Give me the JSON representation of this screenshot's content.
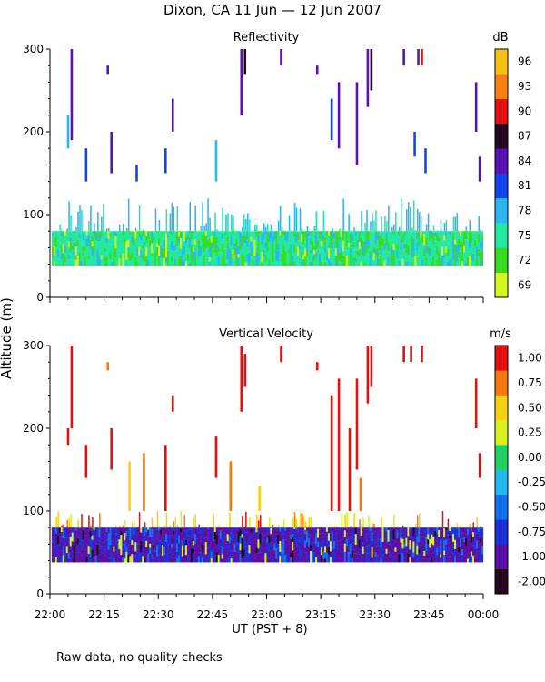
{
  "figure": {
    "title": "Dixon, CA 11 Jun — 12 Jun 2007",
    "shared_ylabel": "Altitude (m)",
    "xlabel": "UT  (PST + 8)",
    "footnote": "Raw data, no quality checks"
  },
  "chart_data": [
    {
      "type": "heatmap",
      "title": "Reflectivity",
      "xlabel": "UT  (PST + 8)",
      "ylabel": "Altitude (m)",
      "xlim": [
        0,
        120
      ],
      "x_unit": "minutes after 22:00 UT",
      "x_ticks": [
        0,
        15,
        30,
        45,
        60,
        75,
        90,
        105,
        120
      ],
      "x_tick_labels": [
        "22:00",
        "22:15",
        "22:30",
        "22:45",
        "23:00",
        "23:15",
        "23:30",
        "23:45",
        "00:00"
      ],
      "ylim": [
        0,
        300
      ],
      "y_ticks": [
        0,
        100,
        200,
        300
      ],
      "y_tick_labels": [
        "0",
        "100",
        "200",
        "300"
      ],
      "colorbar": {
        "unit": "dB",
        "tick_labels": [
          "69",
          "72",
          "75",
          "78",
          "81",
          "84",
          "87",
          "90",
          "93",
          "96"
        ],
        "colors": [
          "#d4f51d",
          "#36dc22",
          "#24e8a2",
          "#2ab6f2",
          "#1244f0",
          "#5a12b4",
          "#260724",
          "#e41010",
          "#f88010",
          "#f8c012"
        ]
      },
      "echo_layer": {
        "base_m": 38,
        "top_m": 80,
        "typical_dB": [
          72,
          78
        ]
      },
      "plume_top_m": 120,
      "columns": [
        {
          "t": 6,
          "from": 190,
          "to": 300,
          "dB": 85
        },
        {
          "t": 5,
          "from": 180,
          "to": 220,
          "dB": 78
        },
        {
          "t": 10,
          "from": 140,
          "to": 180,
          "dB": 81
        },
        {
          "t": 16,
          "from": 270,
          "to": 280,
          "dB": 85
        },
        {
          "t": 17,
          "from": 150,
          "to": 200,
          "dB": 84
        },
        {
          "t": 24,
          "from": 140,
          "to": 160,
          "dB": 81
        },
        {
          "t": 32,
          "from": 150,
          "to": 180,
          "dB": 81
        },
        {
          "t": 34,
          "from": 200,
          "to": 240,
          "dB": 84
        },
        {
          "t": 46,
          "from": 140,
          "to": 190,
          "dB": 78
        },
        {
          "t": 53,
          "from": 220,
          "to": 300,
          "dB": 85
        },
        {
          "t": 54,
          "from": 270,
          "to": 300,
          "dB": 87
        },
        {
          "t": 64,
          "from": 280,
          "to": 300,
          "dB": 85
        },
        {
          "t": 74,
          "from": 270,
          "to": 280,
          "dB": 85
        },
        {
          "t": 78,
          "from": 190,
          "to": 240,
          "dB": 81
        },
        {
          "t": 80,
          "from": 180,
          "to": 260,
          "dB": 84
        },
        {
          "t": 85,
          "from": 160,
          "to": 260,
          "dB": 84
        },
        {
          "t": 88,
          "from": 230,
          "to": 300,
          "dB": 85
        },
        {
          "t": 89,
          "from": 250,
          "to": 300,
          "dB": 87
        },
        {
          "t": 98,
          "from": 280,
          "to": 300,
          "dB": 85
        },
        {
          "t": 102,
          "from": 280,
          "to": 300,
          "dB": 84
        },
        {
          "t": 103,
          "from": 280,
          "to": 300,
          "dB": 90
        },
        {
          "t": 101,
          "from": 170,
          "to": 200,
          "dB": 81
        },
        {
          "t": 104,
          "from": 150,
          "to": 180,
          "dB": 81
        },
        {
          "t": 118,
          "from": 200,
          "to": 260,
          "dB": 84
        },
        {
          "t": 119,
          "from": 140,
          "to": 170,
          "dB": 84
        }
      ]
    },
    {
      "type": "heatmap",
      "title": "Vertical Velocity",
      "xlabel": "UT  (PST + 8)",
      "ylabel": "Altitude (m)",
      "xlim": [
        0,
        120
      ],
      "x_unit": "minutes after 22:00 UT",
      "x_ticks": [
        0,
        15,
        30,
        45,
        60,
        75,
        90,
        105,
        120
      ],
      "x_tick_labels": [
        "22:00",
        "22:15",
        "22:30",
        "22:45",
        "23:00",
        "23:15",
        "23:30",
        "23:45",
        "00:00"
      ],
      "ylim": [
        0,
        300
      ],
      "y_ticks": [
        0,
        100,
        200,
        300
      ],
      "y_tick_labels": [
        "0",
        "100",
        "200",
        "300"
      ],
      "colorbar": {
        "unit": "m/s",
        "tick_labels": [
          "-2.00",
          "-1.00",
          "-0.75",
          "-0.50",
          "-0.25",
          "0.00",
          "0.25",
          "0.50",
          "0.75",
          "1.00"
        ],
        "colors": [
          "#26071e",
          "#5a10a6",
          "#2030d8",
          "#1070f0",
          "#20b8f0",
          "#20d060",
          "#d8f020",
          "#f8d010",
          "#f87810",
          "#e41010"
        ]
      },
      "echo_layer": {
        "base_m": 38,
        "top_m": 80,
        "typical_mps": [
          -1.0,
          -0.5
        ]
      },
      "plume_top_m": 100,
      "columns": [
        {
          "t": 6,
          "from": 200,
          "to": 300,
          "mps": 1.0
        },
        {
          "t": 5,
          "from": 180,
          "to": 200,
          "mps": 1.0
        },
        {
          "t": 10,
          "from": 140,
          "to": 180,
          "mps": 1.0
        },
        {
          "t": 17,
          "from": 150,
          "to": 200,
          "mps": 1.0
        },
        {
          "t": 16,
          "from": 270,
          "to": 280,
          "mps": 0.75
        },
        {
          "t": 22,
          "from": 100,
          "to": 160,
          "mps": 0.5
        },
        {
          "t": 26,
          "from": 100,
          "to": 170,
          "mps": 0.75
        },
        {
          "t": 32,
          "from": 100,
          "to": 180,
          "mps": 1.0
        },
        {
          "t": 34,
          "from": 220,
          "to": 240,
          "mps": 1.0
        },
        {
          "t": 46,
          "from": 140,
          "to": 190,
          "mps": 1.0
        },
        {
          "t": 50,
          "from": 100,
          "to": 160,
          "mps": 0.75
        },
        {
          "t": 53,
          "from": 220,
          "to": 300,
          "mps": 1.0
        },
        {
          "t": 54,
          "from": 250,
          "to": 290,
          "mps": 1.0
        },
        {
          "t": 58,
          "from": 100,
          "to": 130,
          "mps": 0.5
        },
        {
          "t": 64,
          "from": 280,
          "to": 300,
          "mps": 1.0
        },
        {
          "t": 74,
          "from": 270,
          "to": 280,
          "mps": 1.0
        },
        {
          "t": 78,
          "from": 100,
          "to": 240,
          "mps": 1.0
        },
        {
          "t": 80,
          "from": 100,
          "to": 260,
          "mps": 1.0
        },
        {
          "t": 83,
          "from": 100,
          "to": 200,
          "mps": 1.0
        },
        {
          "t": 85,
          "from": 150,
          "to": 260,
          "mps": 1.0
        },
        {
          "t": 86,
          "from": 100,
          "to": 140,
          "mps": 0.75
        },
        {
          "t": 88,
          "from": 230,
          "to": 300,
          "mps": 1.0
        },
        {
          "t": 89,
          "from": 250,
          "to": 300,
          "mps": 1.0
        },
        {
          "t": 98,
          "from": 280,
          "to": 300,
          "mps": 1.0
        },
        {
          "t": 100,
          "from": 280,
          "to": 300,
          "mps": 1.0
        },
        {
          "t": 103,
          "from": 280,
          "to": 300,
          "mps": 1.0
        },
        {
          "t": 118,
          "from": 200,
          "to": 260,
          "mps": 1.0
        },
        {
          "t": 119,
          "from": 140,
          "to": 170,
          "mps": 1.0
        }
      ]
    }
  ]
}
